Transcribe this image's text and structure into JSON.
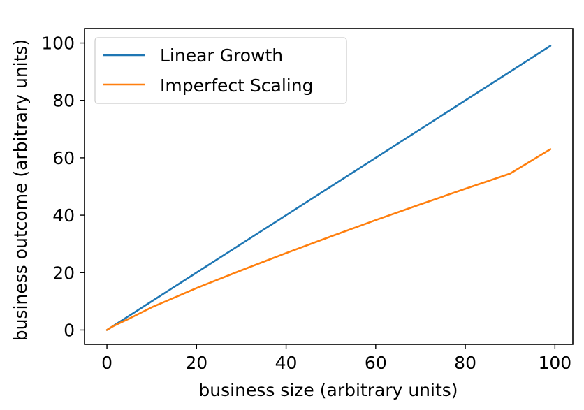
{
  "chart_data": {
    "type": "line",
    "xlabel": "business size (arbitrary units)",
    "ylabel": "business outcome (arbitrary units)",
    "xlim": [
      -5,
      104
    ],
    "ylim": [
      -5,
      105
    ],
    "xticks": [
      0,
      20,
      40,
      60,
      80,
      100
    ],
    "yticks": [
      0,
      20,
      40,
      60,
      80,
      100
    ],
    "xtick_labels": [
      "0",
      "20",
      "40",
      "60",
      "80",
      "100"
    ],
    "ytick_labels": [
      "0",
      "20",
      "40",
      "60",
      "80",
      "100"
    ],
    "grid": false,
    "legend_position": "upper-left",
    "x": [
      0,
      1,
      2,
      5,
      10,
      20,
      30,
      40,
      50,
      60,
      70,
      80,
      90,
      99
    ],
    "series": [
      {
        "name": "Linear Growth",
        "color": "#1f77b4",
        "values": [
          0,
          1,
          2,
          5,
          10,
          20,
          30,
          40,
          50,
          60,
          70,
          80,
          90,
          99
        ]
      },
      {
        "name": "Imperfect Scaling",
        "color": "#ff7f0e",
        "values": [
          0,
          1.0,
          1.8,
          4.0,
          7.9,
          14.6,
          20.8,
          26.8,
          32.6,
          38.3,
          43.8,
          49.2,
          54.5,
          63
        ]
      }
    ]
  }
}
